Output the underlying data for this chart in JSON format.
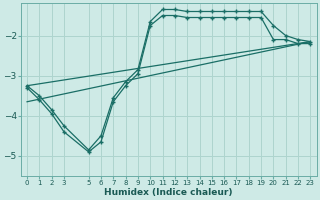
{
  "xlabel": "Humidex (Indice chaleur)",
  "bg_color": "#ceeae6",
  "line_color": "#1a6e66",
  "grid_color": "#aed4ce",
  "xlim": [
    -0.5,
    23.5
  ],
  "ylim": [
    -5.5,
    -1.2
  ],
  "yticks": [
    -5,
    -4,
    -3,
    -2
  ],
  "xtick_positions": [
    0,
    1,
    2,
    3,
    5,
    6,
    7,
    8,
    9,
    10,
    11,
    12,
    13,
    14,
    15,
    16,
    17,
    18,
    19,
    20,
    21,
    22,
    23
  ],
  "xtick_labels": [
    "0",
    "1",
    "2",
    "3",
    "5",
    "6",
    "7",
    "8",
    "9",
    "10",
    "11",
    "12",
    "13",
    "14",
    "15",
    "16",
    "17",
    "18",
    "19",
    "20",
    "21",
    "22",
    "23"
  ],
  "line1_x": [
    0,
    1,
    2,
    3,
    5,
    6,
    7,
    8,
    9,
    10,
    11,
    12,
    13,
    14,
    15,
    16,
    17,
    18,
    19,
    20,
    21,
    22,
    23
  ],
  "line1_y": [
    -3.25,
    -3.5,
    -3.85,
    -4.25,
    -4.85,
    -4.5,
    -3.55,
    -3.15,
    -2.85,
    -1.65,
    -1.35,
    -1.35,
    -1.4,
    -1.4,
    -1.4,
    -1.4,
    -1.4,
    -1.4,
    -1.4,
    -1.75,
    -2.0,
    -2.1,
    -2.15
  ],
  "line2_x": [
    0,
    1,
    2,
    3,
    5,
    6,
    7,
    8,
    9,
    10,
    11,
    12,
    13,
    14,
    15,
    16,
    17,
    18,
    19,
    20,
    21,
    22,
    23
  ],
  "line2_y": [
    -3.3,
    -3.6,
    -3.95,
    -4.4,
    -4.9,
    -4.65,
    -3.65,
    -3.25,
    -2.95,
    -1.75,
    -1.5,
    -1.5,
    -1.55,
    -1.55,
    -1.55,
    -1.55,
    -1.55,
    -1.55,
    -1.55,
    -2.1,
    -2.1,
    -2.2,
    -2.2
  ],
  "line3_x": [
    0,
    23
  ],
  "line3_y": [
    -3.25,
    -2.15
  ],
  "line4_x": [
    0,
    23
  ],
  "line4_y": [
    -3.65,
    -2.15
  ]
}
